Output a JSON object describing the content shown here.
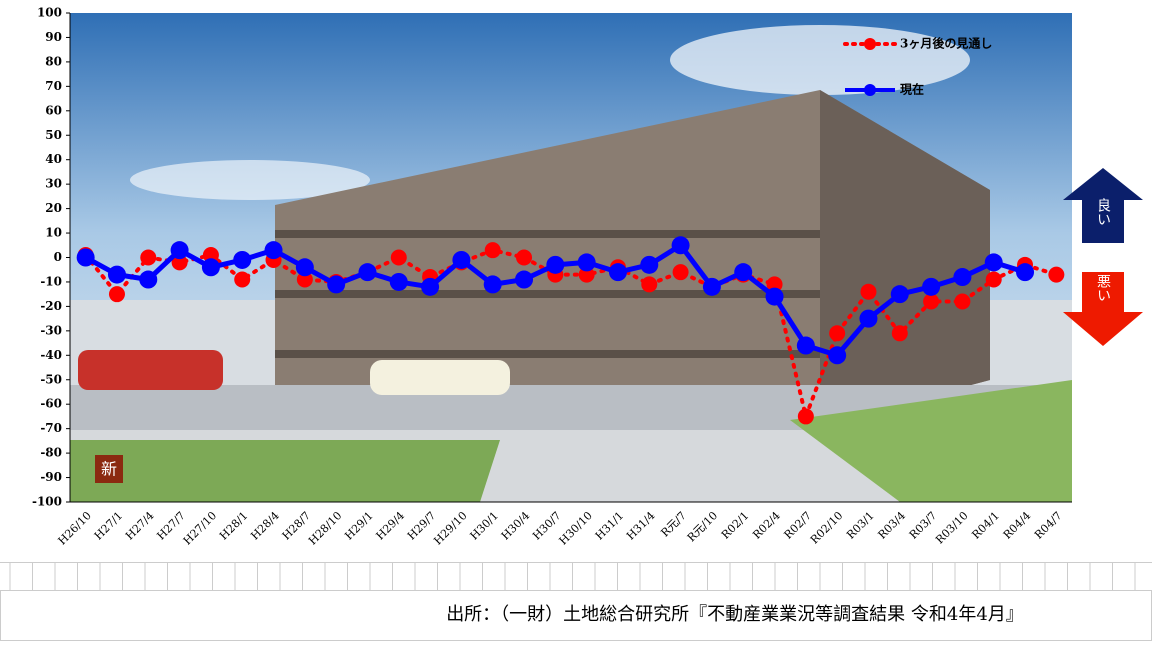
{
  "chart_data": {
    "type": "line",
    "categories": [
      "H26/10",
      "H27/1",
      "H27/4",
      "H27/7",
      "H27/10",
      "H28/1",
      "H28/4",
      "H28/7",
      "H28/10",
      "H29/1",
      "H29/4",
      "H29/7",
      "H29/10",
      "H30/1",
      "H30/4",
      "H30/7",
      "H30/10",
      "H31/1",
      "H31/4",
      "R元/7",
      "R元/10",
      "R02/1",
      "R02/4",
      "R02/7",
      "R02/10",
      "R03/1",
      "R03/4",
      "R03/7",
      "R03/10",
      "R04/1",
      "R04/4",
      "R04/7"
    ],
    "series": [
      {
        "name": "3ヶ月後の見通し",
        "color": "#ff0000",
        "style": "dotted",
        "values": [
          1,
          -15,
          0,
          -2,
          1,
          -9,
          -1,
          -9,
          -10,
          -6,
          0,
          -8,
          -2,
          3,
          0,
          -7,
          -7,
          -4,
          -11,
          -6,
          -12,
          -7,
          -11,
          -65,
          -31,
          -14,
          -31,
          -18,
          -18,
          -9,
          -3,
          -7
        ]
      },
      {
        "name": "現在",
        "color": "#0000ff",
        "style": "solid",
        "values": [
          0,
          -7,
          -9,
          3,
          -4,
          -1,
          3,
          -4,
          -11,
          -6,
          -10,
          -12,
          -1,
          -11,
          -9,
          -3,
          -2,
          -6,
          -3,
          5,
          -12,
          -6,
          -16,
          -36,
          -40,
          -25,
          -15,
          -12,
          -8,
          -2,
          -6,
          null
        ]
      }
    ],
    "ylim": [
      -100,
      100
    ],
    "yticks": [
      -100,
      -90,
      -80,
      -70,
      -60,
      -50,
      -40,
      -30,
      -20,
      -10,
      0,
      10,
      20,
      30,
      40,
      50,
      60,
      70,
      80,
      90,
      100
    ],
    "annotations": [
      "良い",
      "悪い"
    ],
    "source": "出所：（一財）土地総合研究所『不動産業業況等調査結果 令和4年4月』"
  }
}
